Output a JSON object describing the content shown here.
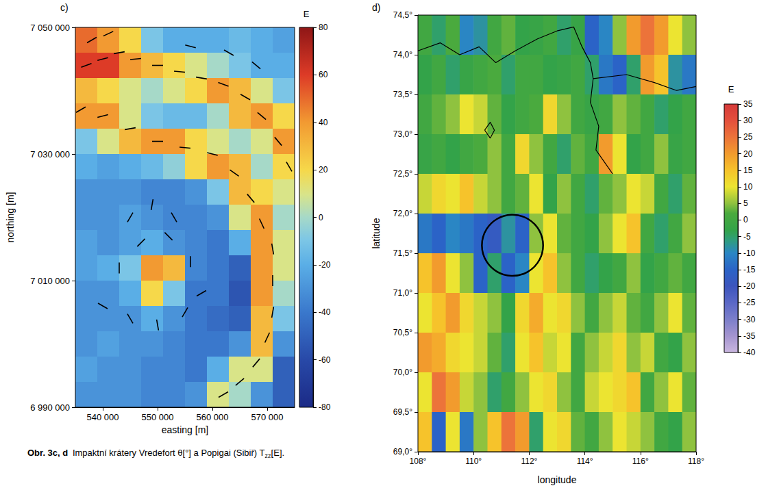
{
  "chart_data": [
    {
      "type": "heatmap",
      "panel": "c)",
      "xlabel": "easting [m]",
      "ylabel": "northing [m]",
      "xlim": [
        535000,
        575000
      ],
      "ylim": [
        6990000,
        7050000
      ],
      "xticks": [
        {
          "value": 540000,
          "label": "540 000"
        },
        {
          "value": 550000,
          "label": "550 000"
        },
        {
          "value": 560000,
          "label": "560 000"
        },
        {
          "value": 570000,
          "label": "570 000"
        }
      ],
      "yticks": [
        {
          "value": 6990000,
          "label": "6 990 000"
        },
        {
          "value": 7010000,
          "label": "7 010 000"
        },
        {
          "value": 7030000,
          "label": "7 030 000"
        },
        {
          "value": 7050000,
          "label": "7 050 000"
        }
      ],
      "x": [
        537000,
        541000,
        545000,
        549000,
        553000,
        557000,
        561000,
        565000,
        569000,
        573000
      ],
      "y": [
        7048000,
        7044000,
        7040000,
        7036000,
        7032000,
        7028000,
        7024000,
        7020000,
        7016000,
        7012000,
        7008000,
        7004000,
        7000000,
        6996000,
        6992000
      ],
      "cells": [
        [
          50,
          40,
          20,
          -10,
          -20,
          -20,
          -20,
          -15,
          -20,
          -25
        ],
        [
          60,
          60,
          40,
          30,
          20,
          10,
          0,
          -10,
          -20,
          -20
        ],
        [
          30,
          20,
          10,
          0,
          10,
          20,
          40,
          30,
          10,
          -10
        ],
        [
          40,
          40,
          10,
          -10,
          -15,
          -15,
          0,
          30,
          40,
          20
        ],
        [
          -10,
          10,
          30,
          40,
          40,
          20,
          10,
          0,
          10,
          40
        ],
        [
          -20,
          -25,
          -20,
          -15,
          -5,
          20,
          40,
          30,
          0,
          20
        ],
        [
          -30,
          -30,
          -30,
          -35,
          -35,
          -30,
          -10,
          30,
          20,
          10
        ],
        [
          -30,
          -30,
          -25,
          -30,
          -35,
          -35,
          -30,
          10,
          40,
          0
        ],
        [
          -25,
          -30,
          -25,
          -20,
          -30,
          -35,
          -40,
          -20,
          40,
          10
        ],
        [
          -25,
          -20,
          -10,
          40,
          30,
          -35,
          -40,
          -50,
          40,
          10
        ],
        [
          -30,
          -30,
          -20,
          20,
          -10,
          -40,
          -40,
          -55,
          40,
          0
        ],
        [
          -30,
          -30,
          -30,
          -20,
          -30,
          -40,
          -45,
          -50,
          30,
          -10
        ],
        [
          -30,
          -25,
          -30,
          -30,
          -35,
          -40,
          -40,
          -30,
          30,
          -30
        ],
        [
          -25,
          -30,
          -30,
          -35,
          -35,
          -40,
          -20,
          10,
          10,
          -50
        ],
        [
          -30,
          -30,
          -30,
          -35,
          -35,
          -30,
          10,
          0,
          -30,
          -50
        ]
      ],
      "colorbar": {
        "title": "E",
        "range": [
          -80,
          80
        ],
        "ticks": [
          -80,
          -60,
          -40,
          -20,
          0,
          20,
          40,
          60,
          80
        ]
      },
      "orientations": [
        [
          537000,
          7044000,
          20
        ],
        [
          540000,
          7045000,
          15
        ],
        [
          543000,
          7046000,
          10
        ],
        [
          546000,
          7045000,
          5
        ],
        [
          550000,
          7044000,
          0
        ],
        [
          554000,
          7043000,
          -5
        ],
        [
          558000,
          7042000,
          -10
        ],
        [
          562000,
          7041000,
          -20
        ],
        [
          566000,
          7039000,
          -30
        ],
        [
          569000,
          7036000,
          -40
        ],
        [
          572000,
          7032000,
          -50
        ],
        [
          574000,
          7028000,
          -60
        ],
        [
          536000,
          7037000,
          30
        ],
        [
          540000,
          7036000,
          15
        ],
        [
          545000,
          7034000,
          10
        ],
        [
          550000,
          7032000,
          0
        ],
        [
          555000,
          7031000,
          -5
        ],
        [
          560000,
          7030000,
          -15
        ],
        [
          564000,
          7027000,
          -35
        ],
        [
          567000,
          7023000,
          -50
        ],
        [
          569000,
          7019000,
          -65
        ],
        [
          571000,
          7015000,
          -80
        ],
        [
          571000,
          7010000,
          90
        ],
        [
          571000,
          7005000,
          80
        ],
        [
          570000,
          7001000,
          65
        ],
        [
          568000,
          6997000,
          50
        ],
        [
          565000,
          6994000,
          40
        ],
        [
          562000,
          6992000,
          30
        ],
        [
          538000,
          7048000,
          30
        ],
        [
          541000,
          7049000,
          25
        ],
        [
          556000,
          7047000,
          -15
        ],
        [
          563000,
          7046000,
          -30
        ],
        [
          568000,
          7044000,
          -40
        ],
        [
          545000,
          7020000,
          60
        ],
        [
          549000,
          7022000,
          80
        ],
        [
          553000,
          7020000,
          -60
        ],
        [
          543000,
          7012000,
          90
        ],
        [
          556000,
          7013000,
          90
        ],
        [
          545000,
          7004000,
          -60
        ],
        [
          550000,
          7003000,
          -80
        ],
        [
          555000,
          7005000,
          60
        ],
        [
          547000,
          7016000,
          45
        ],
        [
          552000,
          7017000,
          -45
        ],
        [
          540000,
          7006000,
          -30
        ],
        [
          558000,
          7008000,
          30
        ]
      ]
    },
    {
      "type": "heatmap",
      "panel": "d)",
      "xlabel": "longitude",
      "ylabel": "latitude",
      "xlim": [
        108,
        118
      ],
      "ylim": [
        69,
        74.5
      ],
      "xticks": [
        {
          "value": 108,
          "label": "108°"
        },
        {
          "value": 110,
          "label": "110°"
        },
        {
          "value": 112,
          "label": "112°"
        },
        {
          "value": 114,
          "label": "114°"
        },
        {
          "value": 116,
          "label": "116°"
        },
        {
          "value": 118,
          "label": "118°"
        }
      ],
      "yticks": [
        {
          "value": 69,
          "label": "69,0°"
        },
        {
          "value": 69.5,
          "label": "69,5°"
        },
        {
          "value": 70,
          "label": "70,0°"
        },
        {
          "value": 70.5,
          "label": "70,5°"
        },
        {
          "value": 71,
          "label": "71,0°"
        },
        {
          "value": 71.5,
          "label": "71,5°"
        },
        {
          "value": 72,
          "label": "72,0°"
        },
        {
          "value": 72.5,
          "label": "72,5°"
        },
        {
          "value": 73,
          "label": "73,0°"
        },
        {
          "value": 73.5,
          "label": "73,5°"
        },
        {
          "value": 74,
          "label": "74,0°"
        },
        {
          "value": 74.5,
          "label": "74,5°"
        }
      ],
      "x": [
        108.25,
        108.75,
        109.25,
        109.75,
        110.25,
        110.75,
        111.25,
        111.75,
        112.25,
        112.75,
        113.25,
        113.75,
        114.25,
        114.75,
        115.25,
        115.75,
        116.25,
        116.75,
        117.25,
        117.75
      ],
      "y": [
        74.25,
        73.75,
        73.25,
        72.75,
        72.25,
        71.75,
        71.25,
        70.75,
        70.25,
        69.75,
        69.25
      ],
      "cells": [
        [
          0,
          -5,
          2,
          -10,
          -8,
          0,
          3,
          -3,
          -2,
          0,
          -5,
          -2,
          -15,
          -10,
          5,
          20,
          25,
          20,
          10,
          5
        ],
        [
          -3,
          0,
          -5,
          -2,
          0,
          2,
          -5,
          0,
          0,
          -3,
          -2,
          0,
          -5,
          -12,
          -15,
          -5,
          20,
          15,
          -8,
          -12
        ],
        [
          0,
          3,
          5,
          10,
          8,
          3,
          -3,
          0,
          2,
          12,
          5,
          0,
          -2,
          0,
          5,
          3,
          0,
          -5,
          -3,
          0
        ],
        [
          -2,
          0,
          -3,
          0,
          2,
          5,
          0,
          12,
          5,
          0,
          -5,
          3,
          0,
          20,
          10,
          -3,
          0,
          5,
          -2,
          0
        ],
        [
          8,
          12,
          10,
          15,
          8,
          5,
          0,
          3,
          10,
          -3,
          5,
          0,
          -5,
          3,
          5,
          10,
          8,
          0,
          -5,
          3
        ],
        [
          -12,
          -15,
          -10,
          -12,
          -15,
          -18,
          -8,
          -15,
          5,
          10,
          3,
          0,
          -3,
          5,
          10,
          15,
          0,
          -5,
          0,
          5
        ],
        [
          15,
          20,
          10,
          5,
          -15,
          -5,
          -15,
          -10,
          10,
          15,
          5,
          0,
          -5,
          -3,
          0,
          5,
          -3,
          0,
          3,
          0
        ],
        [
          10,
          15,
          20,
          12,
          8,
          5,
          -3,
          12,
          18,
          10,
          12,
          5,
          0,
          5,
          8,
          3,
          0,
          5,
          10,
          3
        ],
        [
          20,
          18,
          12,
          10,
          8,
          3,
          -5,
          10,
          15,
          8,
          10,
          0,
          5,
          8,
          12,
          5,
          8,
          0,
          -3,
          5
        ],
        [
          10,
          25,
          20,
          8,
          5,
          -5,
          0,
          5,
          10,
          12,
          5,
          0,
          8,
          10,
          12,
          15,
          0,
          5,
          10,
          3
        ],
        [
          15,
          -15,
          10,
          -12,
          5,
          15,
          25,
          20,
          -5,
          10,
          12,
          3,
          0,
          5,
          10,
          8,
          5,
          0,
          -3,
          5
        ]
      ],
      "colorbar": {
        "title": "E",
        "range": [
          -40,
          35
        ],
        "ticks": [
          -40,
          -35,
          -30,
          -25,
          -20,
          -15,
          -10,
          -5,
          0,
          5,
          10,
          15,
          20,
          25,
          30,
          35
        ]
      },
      "crater": [
        111.4,
        71.6,
        1.1
      ],
      "coastline": [
        [
          [
            108,
            74.05
          ],
          [
            108.8,
            74.15
          ],
          [
            109.5,
            74.0
          ],
          [
            110.2,
            74.1
          ],
          [
            110.8,
            73.9
          ],
          [
            111.5,
            74.05
          ],
          [
            112.3,
            74.2
          ],
          [
            113,
            74.3
          ],
          [
            113.6,
            74.35
          ],
          [
            113.9,
            74.1
          ],
          [
            114.2,
            73.9
          ],
          [
            114.3,
            73.7
          ],
          [
            114.2,
            73.4
          ],
          [
            114.5,
            73.1
          ],
          [
            114.4,
            72.8
          ],
          [
            114.8,
            72.6
          ],
          [
            115,
            72.5
          ]
        ],
        [
          [
            114.3,
            73.7
          ],
          [
            115.5,
            73.75
          ],
          [
            116.5,
            73.65
          ],
          [
            117.3,
            73.55
          ],
          [
            118,
            73.6
          ]
        ],
        [
          [
            110.4,
            73.05
          ],
          [
            110.6,
            73.15
          ],
          [
            110.75,
            73.05
          ],
          [
            110.6,
            72.95
          ],
          [
            110.4,
            73.05
          ]
        ]
      ]
    }
  ],
  "caption": {
    "label": "Obr. 3c, d",
    "text": "Impaktní krátery Vredefort θ[°] a Popigai (Sibiř) T",
    "subscript": "zz",
    "end": "[E]."
  }
}
